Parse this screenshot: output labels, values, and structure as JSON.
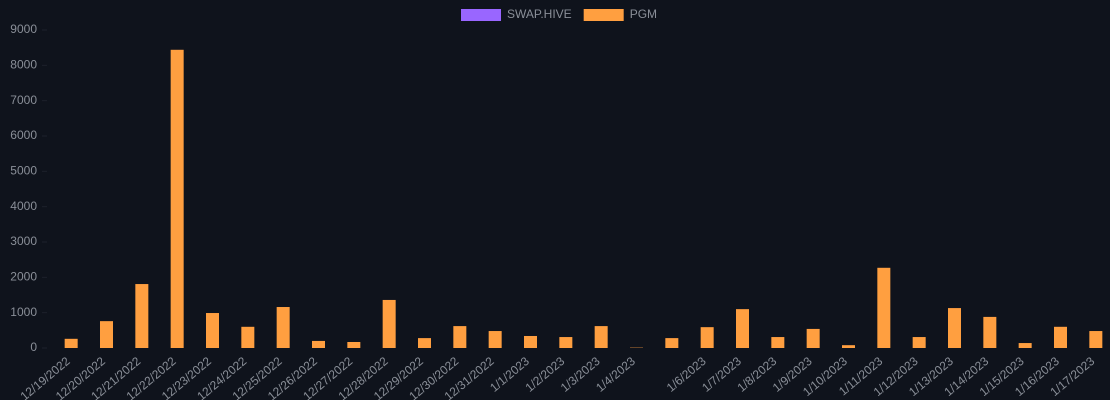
{
  "chart_data": {
    "type": "bar",
    "categories": [
      "12/19/2022",
      "12/20/2022",
      "12/21/2022",
      "12/22/2022",
      "12/23/2022",
      "12/24/2022",
      "12/25/2022",
      "12/26/2022",
      "12/27/2022",
      "12/28/2022",
      "12/29/2022",
      "12/30/2022",
      "12/31/2022",
      "1/1/2023",
      "1/2/2023",
      "1/3/2023",
      "1/4/2023",
      null,
      "1/6/2023",
      "1/7/2023",
      "1/8/2023",
      "1/9/2023",
      "1/10/2023",
      "1/11/2023",
      "1/12/2023",
      "1/13/2023",
      "1/14/2023",
      "1/15/2023",
      "1/16/2023",
      "1/17/2023"
    ],
    "series": [
      {
        "name": "SWAP.HIVE",
        "color": "#9966ff",
        "values": [
          0,
          0,
          0,
          0,
          0,
          0,
          0,
          0,
          0,
          0,
          0,
          0,
          0,
          0,
          0,
          0,
          0,
          0,
          0,
          0,
          0,
          0,
          0,
          0,
          0,
          0,
          0,
          0,
          0,
          0
        ]
      },
      {
        "name": "PGM",
        "color": "#ff9f40",
        "values": [
          260,
          760,
          1810,
          8440,
          990,
          600,
          1160,
          200,
          170,
          1360,
          280,
          620,
          480,
          340,
          310,
          620,
          10,
          280,
          590,
          1100,
          310,
          540,
          80,
          2270,
          310,
          1130,
          880,
          140,
          600,
          480
        ]
      }
    ],
    "ylim": [
      0,
      9000
    ],
    "yticks": [
      0,
      1000,
      2000,
      3000,
      4000,
      5000,
      6000,
      7000,
      8000,
      9000
    ],
    "legend": "top"
  }
}
